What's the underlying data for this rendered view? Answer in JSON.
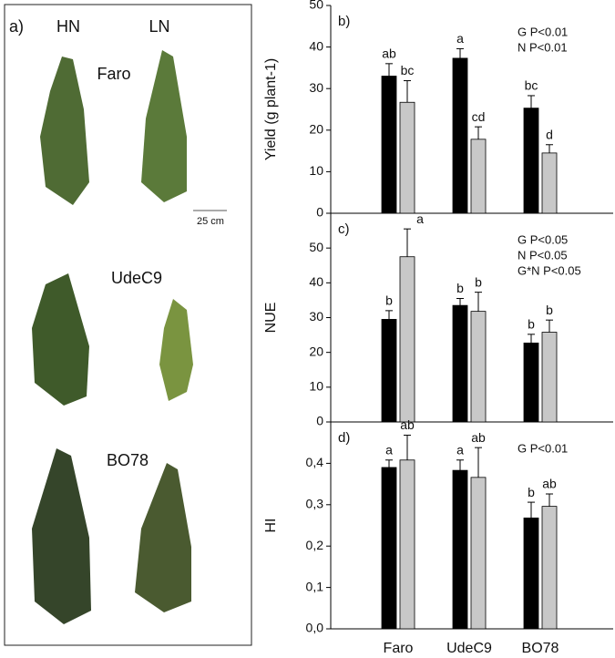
{
  "photo_panel": {
    "panel_label": "a)",
    "columns": [
      "HN",
      "LN"
    ],
    "scale_label": "25 cm",
    "genotypes": [
      "Faro",
      "UdeC9",
      "BO78"
    ]
  },
  "chart_data": [
    {
      "type": "bar",
      "panel_label": "b)",
      "ylabel": "Yield (g plant-1)",
      "ylim": [
        0,
        50
      ],
      "yticks": [
        0,
        10,
        20,
        30,
        40,
        50
      ],
      "annotations": [
        "G P<0.01",
        "N P<0.01"
      ],
      "series": [
        {
          "color": "#000000",
          "values": [
            33,
            37.3,
            25.3
          ],
          "errors": [
            3,
            2.3,
            3
          ],
          "letters": [
            "ab",
            "a",
            "bc"
          ]
        },
        {
          "color": "#c8c8c8",
          "values": [
            26.7,
            17.8,
            14.5
          ],
          "errors": [
            5.2,
            3,
            2
          ],
          "letters": [
            "bc",
            "cd",
            "d"
          ]
        }
      ]
    },
    {
      "type": "bar",
      "panel_label": "c)",
      "ylabel": "NUE",
      "ylim": [
        0,
        60
      ],
      "yticks": [
        0,
        10,
        20,
        30,
        40,
        50
      ],
      "annotations": [
        "G P<0.05",
        "N P<0.05",
        "G*N P<0.05"
      ],
      "series": [
        {
          "color": "#000000",
          "values": [
            29.5,
            33.5,
            22.7
          ],
          "errors": [
            2.5,
            2,
            2.5
          ],
          "letters": [
            "b",
            "b",
            "b"
          ]
        },
        {
          "color": "#c8c8c8",
          "values": [
            47.5,
            31.8,
            25.8
          ],
          "errors": [
            8,
            5.5,
            3.5
          ],
          "letters": [
            "a",
            "b",
            "b"
          ]
        }
      ]
    },
    {
      "type": "bar",
      "panel_label": "d)",
      "ylabel": "HI",
      "categories": [
        "Faro",
        "UdeC9",
        "BO78"
      ],
      "ylim": [
        0,
        0.5
      ],
      "yticks": [
        {
          "value": 0,
          "label": "0,0"
        },
        {
          "value": 0.1,
          "label": "0,1"
        },
        {
          "value": 0.2,
          "label": "0,2"
        },
        {
          "value": 0.3,
          "label": "0,3"
        },
        {
          "value": 0.4,
          "label": "0,4"
        }
      ],
      "annotations": [
        "G P<0.01"
      ],
      "series": [
        {
          "color": "#000000",
          "values": [
            0.39,
            0.383,
            0.268
          ],
          "errors": [
            0.018,
            0.025,
            0.038
          ],
          "letters": [
            "a",
            "a",
            "b"
          ]
        },
        {
          "color": "#c8c8c8",
          "values": [
            0.408,
            0.366,
            0.296
          ],
          "errors": [
            0.06,
            0.072,
            0.03
          ],
          "letters": [
            "ab",
            "ab",
            "ab"
          ]
        }
      ]
    }
  ]
}
